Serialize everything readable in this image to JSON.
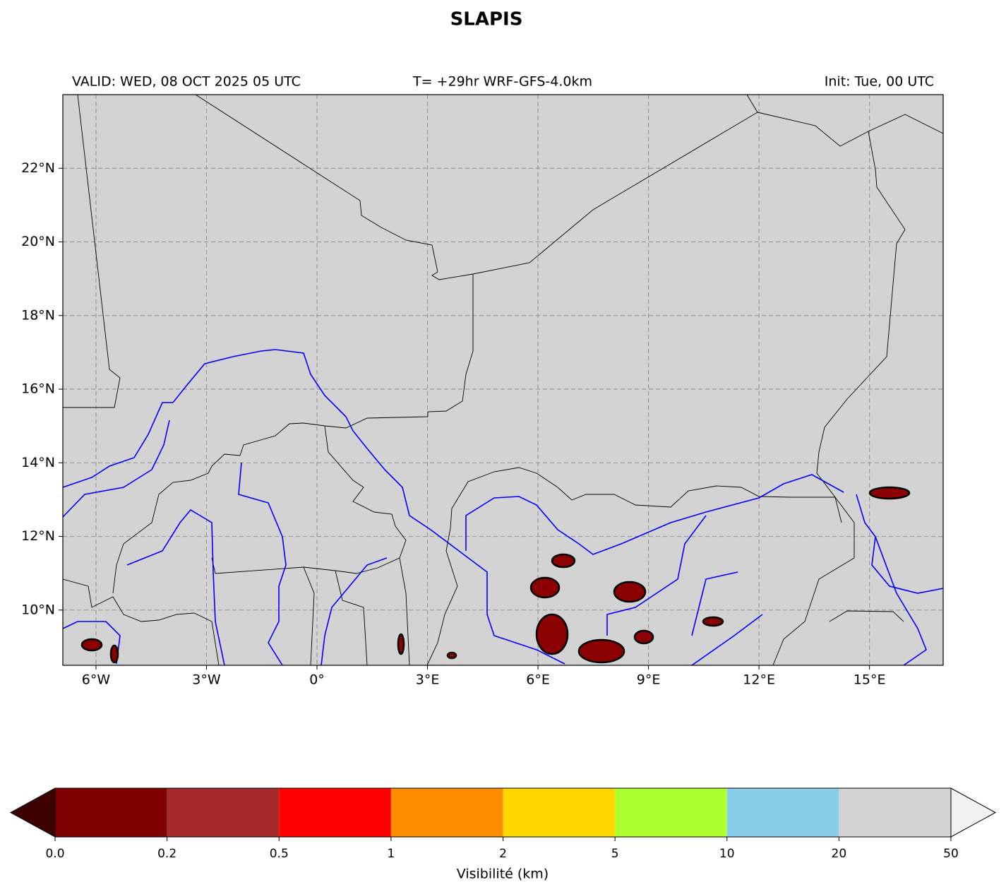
{
  "title": "SLAPIS",
  "header": {
    "valid": "VALID: WED, 08 OCT 2025 05 UTC",
    "lead": "T= +29hr WRF-GFS-4.0km",
    "init": "Init: Tue, 00 UTC"
  },
  "map": {
    "xlim": [
      -6.9,
      17
    ],
    "ylim": [
      8.5,
      24
    ],
    "xticks": [
      {
        "value": -6,
        "label": "6°W"
      },
      {
        "value": -3,
        "label": "3°W"
      },
      {
        "value": 0,
        "label": "0°"
      },
      {
        "value": 3,
        "label": "3°E"
      },
      {
        "value": 6,
        "label": "6°E"
      },
      {
        "value": 9,
        "label": "9°E"
      },
      {
        "value": 12,
        "label": "12°E"
      },
      {
        "value": 15,
        "label": "15°E"
      }
    ],
    "yticks": [
      {
        "value": 10,
        "label": "10°N"
      },
      {
        "value": 12,
        "label": "12°N"
      },
      {
        "value": 14,
        "label": "14°N"
      },
      {
        "value": 16,
        "label": "16°N"
      },
      {
        "value": 18,
        "label": "18°N"
      },
      {
        "value": 20,
        "label": "20°N"
      },
      {
        "value": 22,
        "label": "22°N"
      }
    ],
    "grid": true
  },
  "colorbar": {
    "label": "Visibilité (km)",
    "boundaries": [
      {
        "value": 0,
        "label": "0.0"
      },
      0.2,
      0.5,
      1,
      2,
      5,
      10,
      20,
      50
    ],
    "colors": [
      "#800000",
      "#a52a2a",
      "#ff0000",
      "#ff8c00",
      "#ffd700",
      "#adff2f",
      "#87ceeb",
      "#d3d3d3"
    ],
    "under_color": "#3d0000",
    "over_color": "#f2f2f2"
  }
}
